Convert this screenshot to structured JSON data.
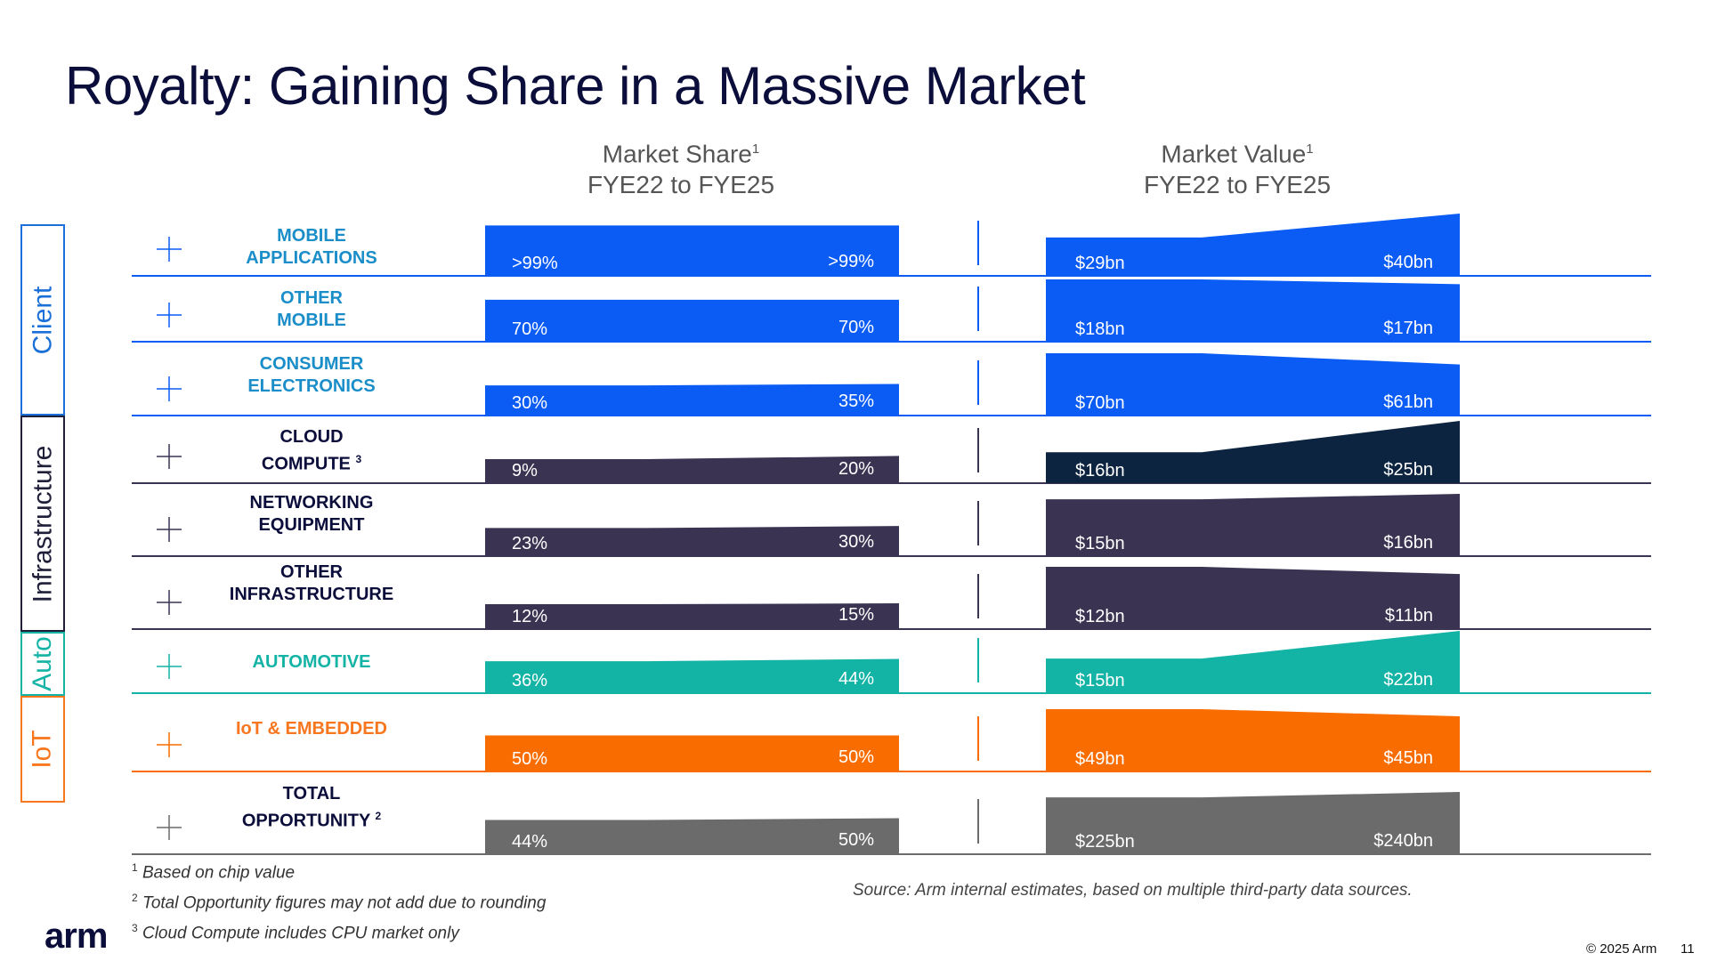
{
  "slide": {
    "title": "Royalty: Gaining Share in a Massive Market",
    "share_header": {
      "line1": "Market Share",
      "sup": "1",
      "line2": "FYE22 to FYE25"
    },
    "value_header": {
      "line1": "Market Value",
      "sup": "1",
      "line2": "FYE22 to FYE25"
    }
  },
  "segments": [
    {
      "name": "Client",
      "color": "#1a6fd8"
    },
    {
      "name": "Infrastructure",
      "color": "#1f1f3a"
    },
    {
      "name": "Auto",
      "color": "#13b3a5"
    },
    {
      "name": "IoT",
      "color": "#f7761e"
    }
  ],
  "chart_data": {
    "type": "area",
    "x": [
      "FYE22",
      "FYE25"
    ],
    "rows": [
      {
        "segment": "Client",
        "label_line1": "MOBILE",
        "label_line2": "APPLICATIONS",
        "label_sup": "",
        "label_color": "#1b8ec9",
        "color": "#0a5cf5",
        "value_color": "#0a5cf5",
        "share": [
          99,
          99
        ],
        "share_labels": [
          ">99%",
          ">99%"
        ],
        "value": [
          29,
          40
        ],
        "value_labels": [
          "$29bn",
          "$40bn"
        ]
      },
      {
        "segment": "Client",
        "label_line1": "OTHER",
        "label_line2": "MOBILE",
        "label_sup": "",
        "label_color": "#1b8ec9",
        "color": "#0a5cf5",
        "value_color": "#0a5cf5",
        "share": [
          70,
          70
        ],
        "share_labels": [
          "70%",
          "70%"
        ],
        "value": [
          18,
          17
        ],
        "value_labels": [
          "$18bn",
          "$17bn"
        ]
      },
      {
        "segment": "Client",
        "label_line1": "CONSUMER",
        "label_line2": "ELECTRONICS",
        "label_sup": "",
        "label_color": "#1b8ec9",
        "color": "#0a5cf5",
        "value_color": "#0a5cf5",
        "share": [
          30,
          35
        ],
        "share_labels": [
          "30%",
          "35%"
        ],
        "value": [
          70,
          61
        ],
        "value_labels": [
          "$70bn",
          "$61bn"
        ]
      },
      {
        "segment": "Infrastructure",
        "label_line1": "CLOUD",
        "label_line2": "COMPUTE",
        "label_sup": "3",
        "label_color": "#0b0d3a",
        "color": "#3a3452",
        "value_color": "#0d2440",
        "share": [
          9,
          20
        ],
        "share_labels": [
          "9%",
          "20%"
        ],
        "value": [
          16,
          25
        ],
        "value_labels": [
          "$16bn",
          "$25bn"
        ]
      },
      {
        "segment": "Infrastructure",
        "label_line1": "NETWORKING",
        "label_line2": "EQUIPMENT",
        "label_sup": "",
        "label_color": "#0b0d3a",
        "color": "#3a3452",
        "value_color": "#3a3452",
        "share": [
          23,
          30
        ],
        "share_labels": [
          "23%",
          "30%"
        ],
        "value": [
          15,
          16
        ],
        "value_labels": [
          "$15bn",
          "$16bn"
        ]
      },
      {
        "segment": "Infrastructure",
        "label_line1": "OTHER",
        "label_line2": "INFRASTRUCTURE",
        "label_sup": "",
        "label_color": "#0b0d3a",
        "color": "#3a3452",
        "value_color": "#3a3452",
        "share": [
          12,
          15
        ],
        "share_labels": [
          "12%",
          "15%"
        ],
        "value": [
          12,
          11
        ],
        "value_labels": [
          "$12bn",
          "$11bn"
        ]
      },
      {
        "segment": "Auto",
        "label_line1": "AUTOMOTIVE",
        "label_line2": "",
        "label_sup": "",
        "label_color": "#13b3a5",
        "color": "#13b3a5",
        "value_color": "#13b3a5",
        "share": [
          36,
          44
        ],
        "share_labels": [
          "36%",
          "44%"
        ],
        "value": [
          15,
          22
        ],
        "value_labels": [
          "$15bn",
          "$22bn"
        ]
      },
      {
        "segment": "IoT",
        "label_line1": "IoT & EMBEDDED",
        "label_line2": "",
        "label_sup": "",
        "label_color": "#f7761e",
        "color": "#f96d00",
        "value_color": "#f96d00",
        "share": [
          50,
          50
        ],
        "share_labels": [
          "50%",
          "50%"
        ],
        "value": [
          49,
          45
        ],
        "value_labels": [
          "$49bn",
          "$45bn"
        ]
      },
      {
        "segment": "Total",
        "label_line1": "TOTAL",
        "label_line2": "OPPORTUNITY",
        "label_sup": "2",
        "label_color": "#0b0d3a",
        "color": "#6b6b6b",
        "value_color": "#6b6b6b",
        "share": [
          44,
          50
        ],
        "share_labels": [
          "44%",
          "50%"
        ],
        "value": [
          225,
          240
        ],
        "value_labels": [
          "$225bn",
          "$240bn"
        ]
      }
    ]
  },
  "footnotes": [
    {
      "num": "1",
      "text": "Based on chip value"
    },
    {
      "num": "2",
      "text": "Total Opportunity figures may not add due to rounding"
    },
    {
      "num": "3",
      "text": "Cloud Compute includes CPU market only"
    }
  ],
  "source": "Source: Arm internal estimates, based on multiple third-party data sources.",
  "logo_text": "arm",
  "copyright": "© 2025 Arm",
  "page_number": "11"
}
